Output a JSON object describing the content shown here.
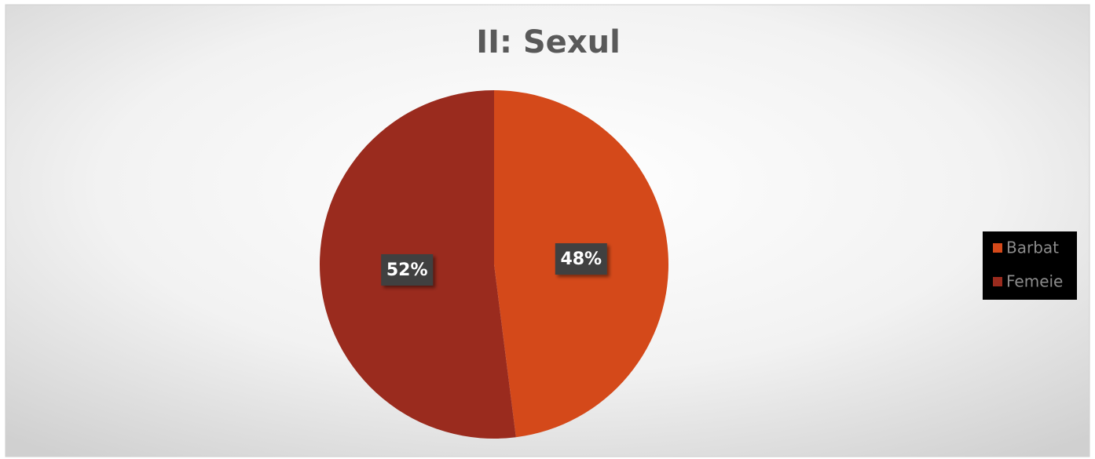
{
  "chart_data": {
    "type": "pie",
    "title": "II: Sexul",
    "categories": [
      "Barbat",
      "Femeie"
    ],
    "values": [
      48,
      52
    ],
    "value_labels": [
      "48%",
      "52%"
    ],
    "colors": [
      "#d4491a",
      "#9a2b1e"
    ],
    "legend": "right"
  }
}
